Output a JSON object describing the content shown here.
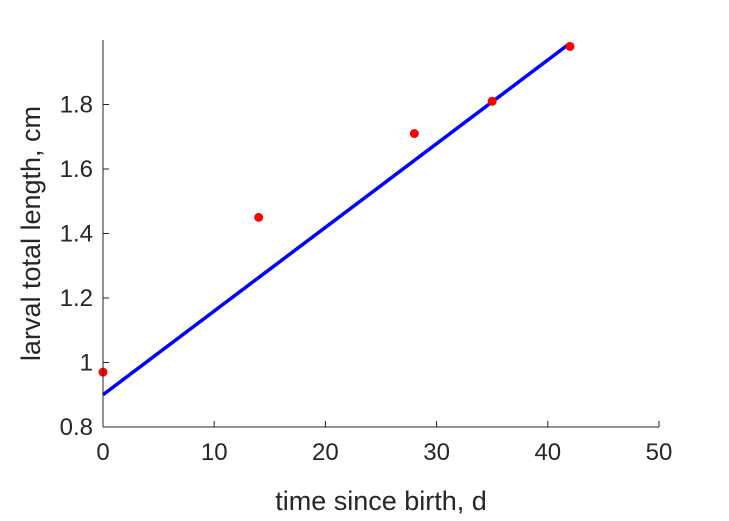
{
  "chart_data": {
    "type": "scatter",
    "xlabel": "time since birth, d",
    "ylabel": "larval total length, cm",
    "xlim": [
      0,
      50
    ],
    "ylim": [
      0.8,
      2.0
    ],
    "x_ticks": [
      0,
      10,
      20,
      30,
      40,
      50
    ],
    "x_tick_labels": [
      "0",
      "10",
      "20",
      "30",
      "40",
      "50"
    ],
    "y_ticks": [
      0.8,
      1,
      1.2,
      1.4,
      1.6,
      1.8
    ],
    "y_tick_labels": [
      "0.8",
      "1",
      "1.2",
      "1.4",
      "1.6",
      "1.8"
    ],
    "grid": false,
    "legend": "none",
    "series": [
      {
        "kind": "points",
        "color": "#ff0000",
        "x": [
          0,
          14,
          28,
          35,
          42
        ],
        "y": [
          0.97,
          1.45,
          1.71,
          1.81,
          1.98
        ]
      },
      {
        "kind": "line",
        "color": "#0000ff",
        "x": [
          0,
          42
        ],
        "y": [
          0.9,
          1.99
        ]
      }
    ]
  }
}
